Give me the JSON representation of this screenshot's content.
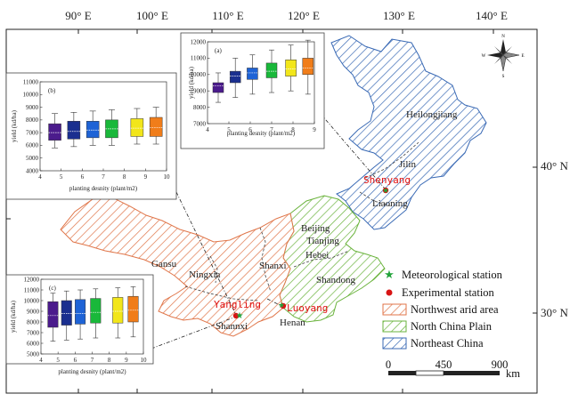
{
  "map": {
    "longitude_labels": [
      "90° E",
      "100° E",
      "110° E",
      "120° E",
      "130° E",
      "140° E"
    ],
    "latitude_labels": [
      "40° N",
      "30° N"
    ],
    "regions": [
      {
        "key": "northwest",
        "color": "#e0764a",
        "label": "Northwest arid area"
      },
      {
        "key": "ncp",
        "color": "#6ab33c",
        "label": "North China Plain"
      },
      {
        "key": "northeast",
        "color": "#3a6ab5",
        "label": "Northeast China"
      }
    ],
    "provinces": [
      "Heilongjiang",
      "Jilin",
      "Liaoning",
      "Beijing",
      "Tianjing",
      "Hebei",
      "Shandong",
      "Shanxi",
      "Henan",
      "Gansu",
      "Ningxia",
      "Shannxi"
    ],
    "stations": [
      "Shenyang",
      "Yangling",
      "Luoyang"
    ],
    "compass": {
      "n": "N",
      "s": "S",
      "e": "E",
      "w": "W"
    },
    "scale": {
      "ticks": [
        "0",
        "450",
        "900"
      ],
      "unit": "km"
    }
  },
  "legend": {
    "met_station": "Meteorological station",
    "exp_station": "Experimental station",
    "northwest": "Northwest arid area",
    "ncp": "North China Plain",
    "northeast": "Northeast China"
  },
  "chart_data": [
    {
      "type": "box",
      "panel": "(a)",
      "xlabel": "planting desnity (plant/m2)",
      "ylabel": "yield (kd/ha)",
      "xlim": [
        4,
        9
      ],
      "ylim": [
        7000,
        12000
      ],
      "xticks": [
        4,
        5,
        6,
        7,
        8,
        9
      ],
      "yticks": [
        7000,
        8000,
        9000,
        10000,
        11000,
        12000
      ],
      "boxes": [
        {
          "x": 4.5,
          "min": 8300,
          "q1": 8900,
          "median": 9300,
          "q3": 9500,
          "max": 10100,
          "color": "#4b1b8c"
        },
        {
          "x": 5.3,
          "min": 8600,
          "q1": 9500,
          "median": 9900,
          "q3": 10200,
          "max": 11000,
          "color": "#1a2f8f"
        },
        {
          "x": 6.1,
          "min": 8800,
          "q1": 9700,
          "median": 10100,
          "q3": 10400,
          "max": 11200,
          "color": "#1e63d6"
        },
        {
          "x": 7.0,
          "min": 8900,
          "q1": 9800,
          "median": 10200,
          "q3": 10700,
          "max": 11500,
          "color": "#19b83a"
        },
        {
          "x": 7.9,
          "min": 9000,
          "q1": 9900,
          "median": 10350,
          "q3": 10900,
          "max": 11800,
          "color": "#f2e61a"
        },
        {
          "x": 8.7,
          "min": 8800,
          "q1": 10000,
          "median": 10400,
          "q3": 11000,
          "max": 12100,
          "color": "#f07d1a"
        }
      ]
    },
    {
      "type": "box",
      "panel": "(b)",
      "xlabel": "planting desnity (plant/m2)",
      "ylabel": "yield (kd/ha)",
      "xlim": [
        4,
        10
      ],
      "ylim": [
        4000,
        11000
      ],
      "xticks": [
        4,
        5,
        6,
        7,
        8,
        9,
        10
      ],
      "yticks": [
        4000,
        5000,
        6000,
        7000,
        8000,
        9000,
        10000,
        11000
      ],
      "boxes": [
        {
          "x": 4.7,
          "min": 5800,
          "q1": 6400,
          "median": 7000,
          "q3": 7700,
          "max": 8500,
          "color": "#4b1b8c"
        },
        {
          "x": 5.6,
          "min": 5900,
          "q1": 6500,
          "median": 7100,
          "q3": 7900,
          "max": 8600,
          "color": "#1a2f8f"
        },
        {
          "x": 6.5,
          "min": 6000,
          "q1": 6600,
          "median": 7200,
          "q3": 7900,
          "max": 8700,
          "color": "#1e63d6"
        },
        {
          "x": 7.4,
          "min": 6000,
          "q1": 6600,
          "median": 7300,
          "q3": 8000,
          "max": 8800,
          "color": "#19b83a"
        },
        {
          "x": 8.6,
          "min": 6100,
          "q1": 6700,
          "median": 7350,
          "q3": 8100,
          "max": 8900,
          "color": "#f2e61a"
        },
        {
          "x": 9.5,
          "min": 6100,
          "q1": 6700,
          "median": 7400,
          "q3": 8200,
          "max": 9000,
          "color": "#f07d1a"
        }
      ]
    },
    {
      "type": "box",
      "panel": "(c)",
      "xlabel": "planting desnity (plant/m2)",
      "ylabel": "yield (kd/ha)",
      "xlim": [
        4,
        10
      ],
      "ylim": [
        5000,
        12000
      ],
      "xticks": [
        4,
        5,
        6,
        7,
        8,
        9,
        10
      ],
      "yticks": [
        5000,
        6000,
        7000,
        8000,
        9000,
        10000,
        11000,
        12000
      ],
      "boxes": [
        {
          "x": 4.7,
          "min": 6200,
          "q1": 7500,
          "median": 8600,
          "q3": 9900,
          "max": 10700,
          "color": "#4b1b8c"
        },
        {
          "x": 5.5,
          "min": 6300,
          "q1": 7700,
          "median": 8800,
          "q3": 10000,
          "max": 10900,
          "color": "#1a2f8f"
        },
        {
          "x": 6.3,
          "min": 6400,
          "q1": 7800,
          "median": 8800,
          "q3": 10100,
          "max": 11000,
          "color": "#1e63d6"
        },
        {
          "x": 7.2,
          "min": 6500,
          "q1": 7900,
          "median": 8900,
          "q3": 10200,
          "max": 11100,
          "color": "#19b83a"
        },
        {
          "x": 8.5,
          "min": 6500,
          "q1": 7900,
          "median": 9000,
          "q3": 10300,
          "max": 11200,
          "color": "#f2e61a"
        },
        {
          "x": 9.4,
          "min": 6600,
          "q1": 8000,
          "median": 9100,
          "q3": 10400,
          "max": 11300,
          "color": "#f07d1a"
        }
      ]
    }
  ]
}
